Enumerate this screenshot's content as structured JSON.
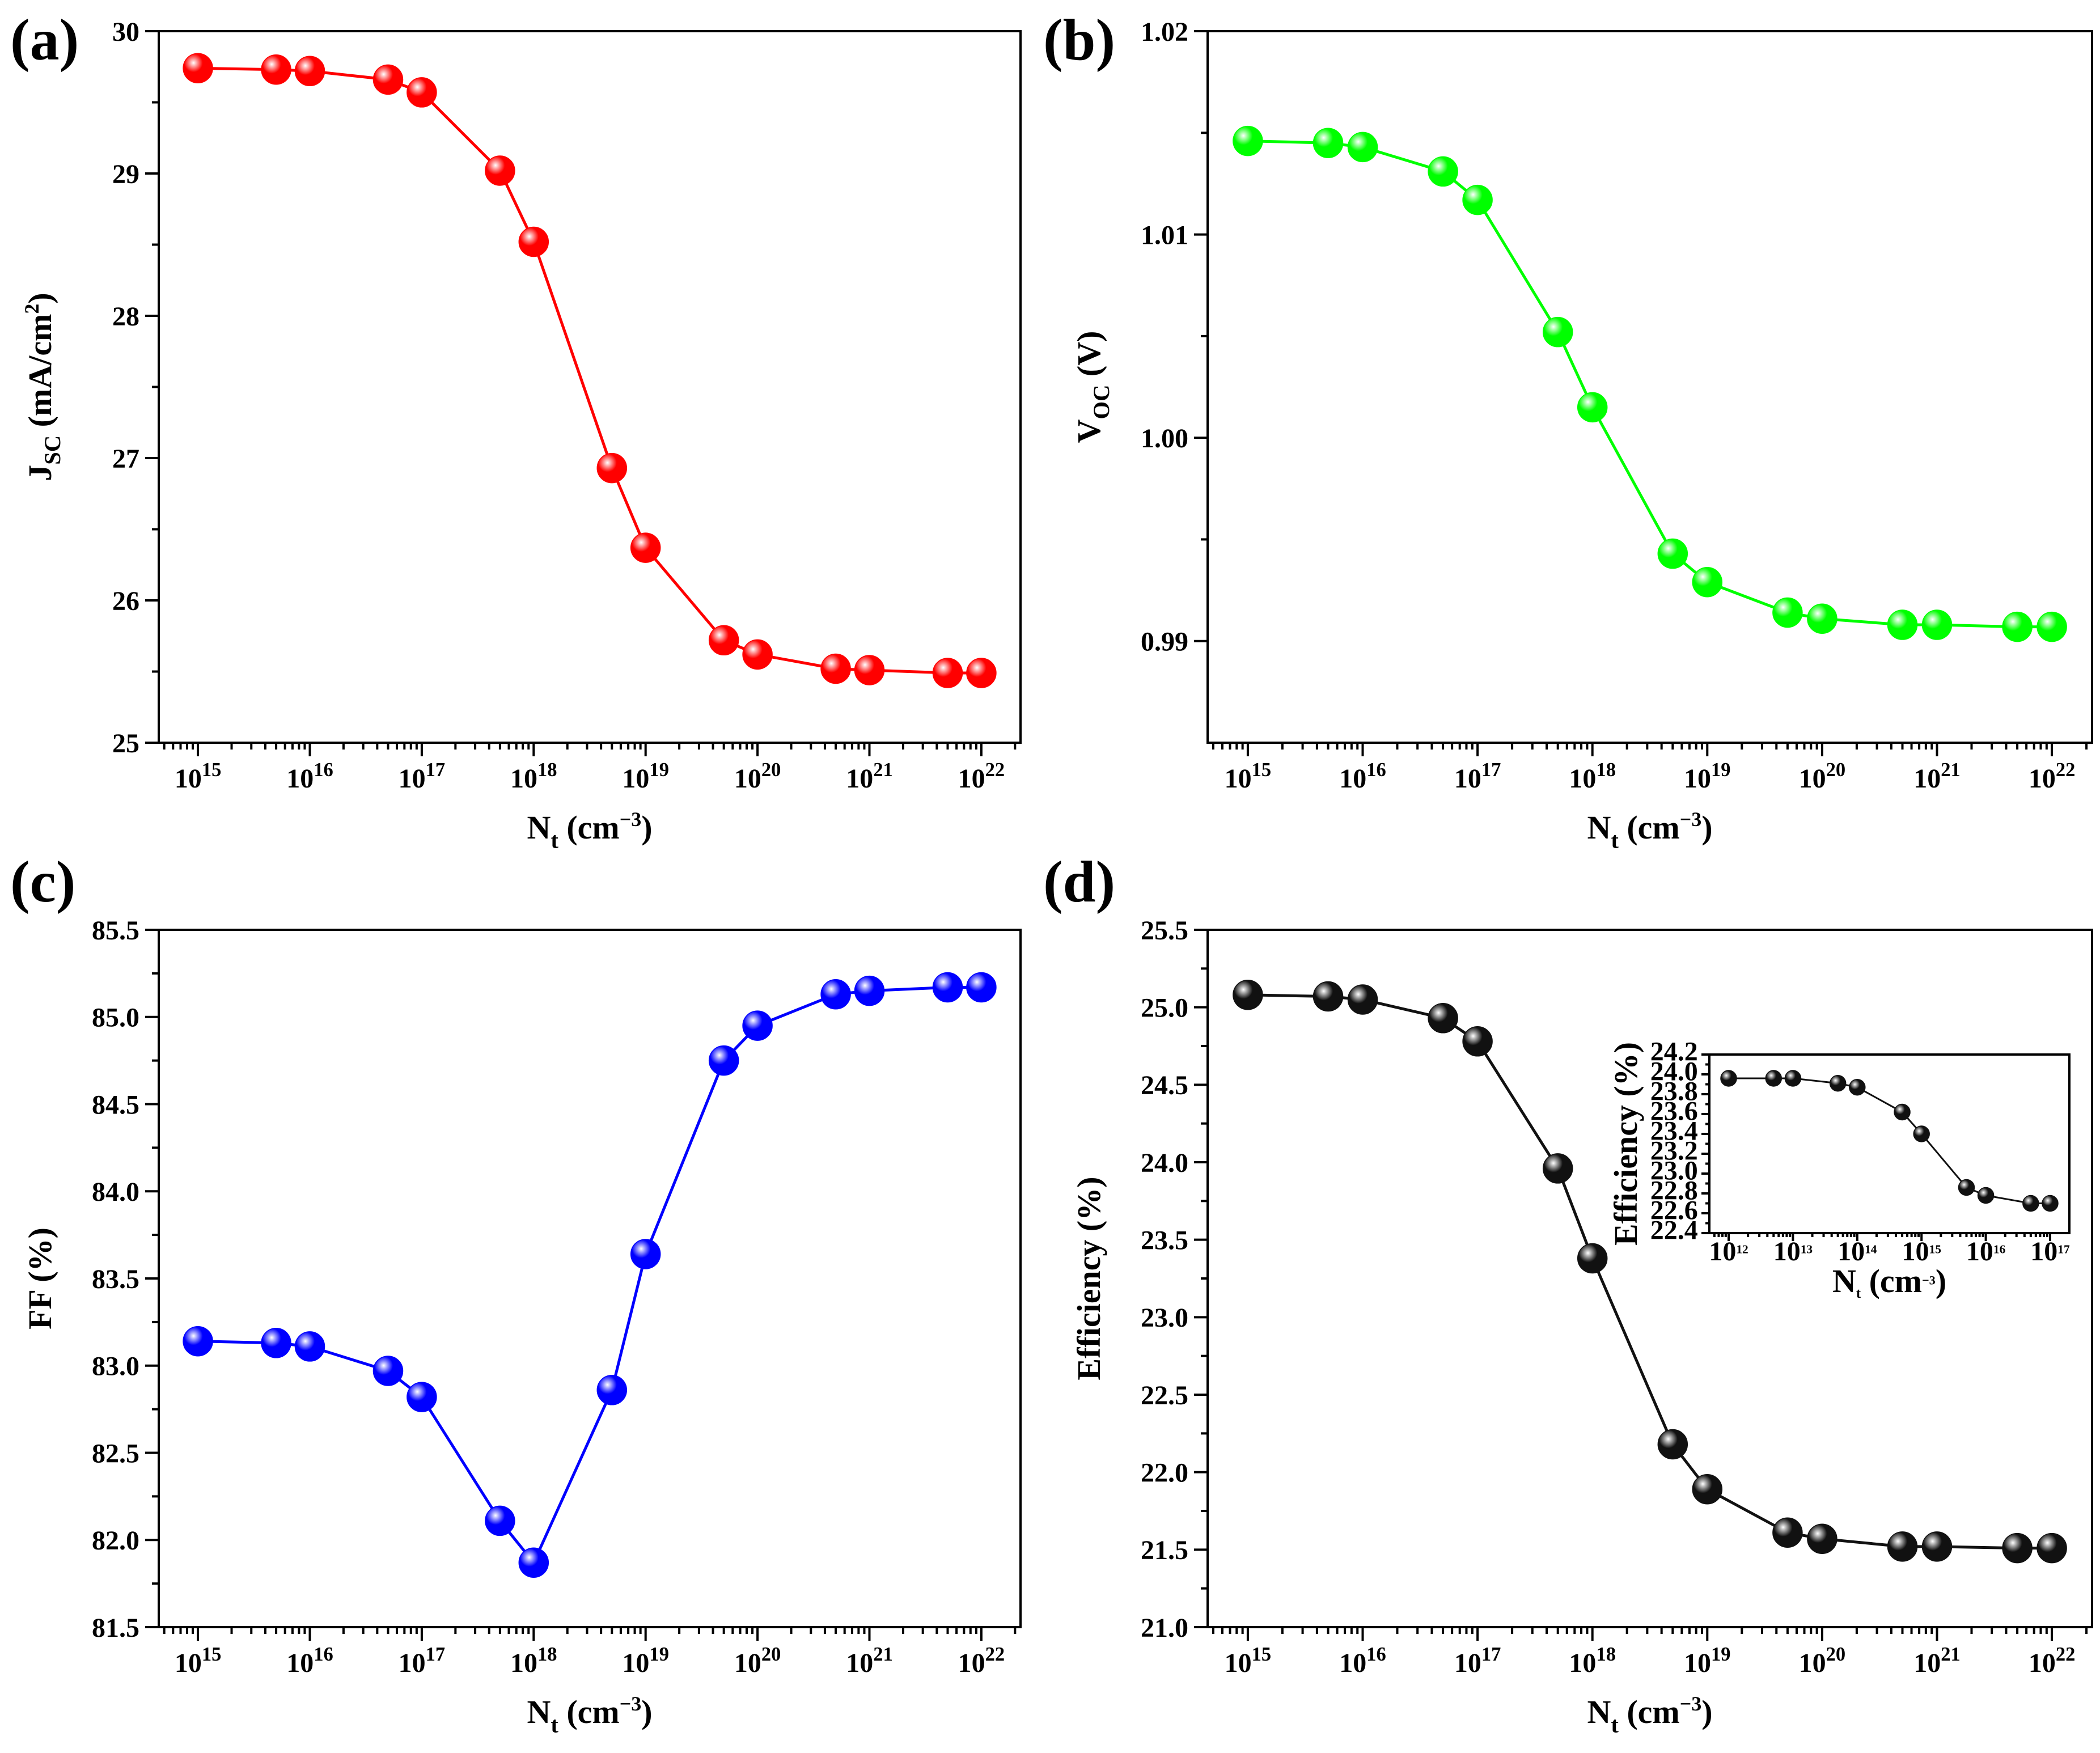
{
  "chart_data": [
    {
      "id": "a",
      "type": "line",
      "panel_label": "(a)",
      "xscale": "log",
      "xlim_exp": [
        14.65,
        22.35
      ],
      "xtick_exponents": [
        15,
        16,
        17,
        18,
        19,
        20,
        21,
        22
      ],
      "xlabel": {
        "base": "N",
        "sub": "t",
        "unit": " (cm",
        "sup": "−3",
        "close": ")"
      },
      "ylabel": {
        "base": "J",
        "sub": "SC",
        "unit": " (mA/cm",
        "sup": "2",
        "close": ")"
      },
      "ylim": [
        25,
        30
      ],
      "yticks": [
        25,
        26,
        27,
        28,
        29,
        30
      ],
      "ytick_labels": [
        "25",
        "26",
        "27",
        "28",
        "29",
        "30"
      ],
      "color": "#ff0000",
      "series": [
        {
          "name": "Jsc",
          "x": [
            1000000000000000.0,
            5000000000000000.0,
            1e+16,
            5e+16,
            1e+17,
            5e+17,
            1e+18,
            5e+18,
            1e+19,
            5e+19,
            1e+20,
            5e+20,
            1e+21,
            5e+21,
            1e+22
          ],
          "values": [
            29.74,
            29.73,
            29.72,
            29.66,
            29.57,
            29.02,
            28.52,
            26.93,
            26.37,
            25.72,
            25.62,
            25.52,
            25.51,
            25.49,
            25.49
          ]
        }
      ]
    },
    {
      "id": "b",
      "type": "line",
      "panel_label": "(b)",
      "xscale": "log",
      "xlim_exp": [
        14.65,
        22.35
      ],
      "xtick_exponents": [
        15,
        16,
        17,
        18,
        19,
        20,
        21,
        22
      ],
      "xlabel": {
        "base": "N",
        "sub": "t",
        "unit": " (cm",
        "sup": "−3",
        "close": ")"
      },
      "ylabel": {
        "base": "V",
        "sub": "OC",
        "unit": " (V)",
        "sup": "",
        "close": ""
      },
      "ylim": [
        0.985,
        1.02
      ],
      "yticks": [
        0.99,
        1.0,
        1.01,
        1.02
      ],
      "ytick_labels": [
        "0.99",
        "1.00",
        "1.01",
        "1.02"
      ],
      "color": "#00ff00",
      "series": [
        {
          "name": "Voc",
          "x": [
            1000000000000000.0,
            5000000000000000.0,
            1e+16,
            5e+16,
            1e+17,
            5e+17,
            1e+18,
            5e+18,
            1e+19,
            5e+19,
            1e+20,
            5e+20,
            1e+21,
            5e+21,
            1e+22
          ],
          "values": [
            1.0146,
            1.0145,
            1.0143,
            1.0131,
            1.0117,
            1.0052,
            1.0015,
            0.9943,
            0.9929,
            0.9914,
            0.9911,
            0.9908,
            0.9908,
            0.9907,
            0.9907
          ]
        }
      ]
    },
    {
      "id": "c",
      "type": "line",
      "panel_label": "(c)",
      "xscale": "log",
      "xlim_exp": [
        14.65,
        22.35
      ],
      "xtick_exponents": [
        15,
        16,
        17,
        18,
        19,
        20,
        21,
        22
      ],
      "xlabel": {
        "base": "N",
        "sub": "t",
        "unit": " (cm",
        "sup": "−3",
        "close": ")"
      },
      "ylabel": {
        "base": "FF (%)",
        "sub": "",
        "unit": "",
        "sup": "",
        "close": ""
      },
      "ylim": [
        81.5,
        85.5
      ],
      "yticks": [
        81.5,
        82.0,
        82.5,
        83.0,
        83.5,
        84.0,
        84.5,
        85.0,
        85.5
      ],
      "ytick_labels": [
        "81.5",
        "82.0",
        "82.5",
        "83.0",
        "83.5",
        "84.0",
        "84.5",
        "85.0",
        "85.5"
      ],
      "color": "#0000ff",
      "series": [
        {
          "name": "FF",
          "x": [
            1000000000000000.0,
            5000000000000000.0,
            1e+16,
            5e+16,
            1e+17,
            5e+17,
            1e+18,
            5e+18,
            1e+19,
            5e+19,
            1e+20,
            5e+20,
            1e+21,
            5e+21,
            1e+22
          ],
          "values": [
            83.14,
            83.13,
            83.11,
            82.97,
            82.82,
            82.11,
            81.87,
            82.86,
            83.64,
            84.75,
            84.95,
            85.13,
            85.15,
            85.17,
            85.17
          ]
        }
      ]
    },
    {
      "id": "d",
      "type": "line",
      "panel_label": "(d)",
      "xscale": "log",
      "xlim_exp": [
        14.65,
        22.35
      ],
      "xtick_exponents": [
        15,
        16,
        17,
        18,
        19,
        20,
        21,
        22
      ],
      "xlabel": {
        "base": "N",
        "sub": "t",
        "unit": " (cm",
        "sup": "−3",
        "close": ")"
      },
      "ylabel": {
        "base": "Efficiency (%)",
        "sub": "",
        "unit": "",
        "sup": "",
        "close": ""
      },
      "ylim": [
        21.0,
        25.5
      ],
      "yticks": [
        21.0,
        21.5,
        22.0,
        22.5,
        23.0,
        23.5,
        24.0,
        24.5,
        25.0,
        25.5
      ],
      "ytick_labels": [
        "21.0",
        "21.5",
        "22.0",
        "22.5",
        "23.0",
        "23.5",
        "24.0",
        "24.5",
        "25.0",
        "25.5"
      ],
      "color": "#111111",
      "series": [
        {
          "name": "Efficiency",
          "x": [
            1000000000000000.0,
            5000000000000000.0,
            1e+16,
            5e+16,
            1e+17,
            5e+17,
            1e+18,
            5e+18,
            1e+19,
            5e+19,
            1e+20,
            5e+20,
            1e+21,
            5e+21,
            1e+22
          ],
          "values": [
            25.08,
            25.07,
            25.05,
            24.93,
            24.78,
            23.96,
            23.38,
            22.18,
            21.89,
            21.61,
            21.57,
            21.52,
            21.52,
            21.51,
            21.51
          ]
        }
      ]
    },
    {
      "id": "d-inset",
      "type": "line",
      "panel_label": "",
      "xscale": "log",
      "xlim_exp": [
        11.7,
        17.3
      ],
      "xtick_exponents": [
        12,
        13,
        14,
        15,
        16,
        17
      ],
      "xlabel": {
        "base": "N",
        "sub": "t",
        "unit": " (cm",
        "sup": "−3",
        "close": ")"
      },
      "ylabel": {
        "base": "Efficiency (%)",
        "sub": "",
        "unit": "",
        "sup": "",
        "close": ""
      },
      "ylim": [
        22.4,
        24.2
      ],
      "yticks": [
        22.4,
        22.6,
        22.8,
        23.0,
        23.2,
        23.4,
        23.6,
        23.8,
        24.0,
        24.2
      ],
      "ytick_labels": [
        "22.4",
        "22.6",
        "22.8",
        "23.0",
        "23.2",
        "23.4",
        "23.6",
        "23.8",
        "24.0",
        "24.2"
      ],
      "color": "#111111",
      "series": [
        {
          "name": "Efficiency (inset)",
          "x": [
            1000000000000.0,
            5000000000000.0,
            10000000000000.0,
            50000000000000.0,
            100000000000000.0,
            500000000000000.0,
            1000000000000000.0,
            5000000000000000.0,
            1e+16,
            5e+16,
            1e+17
          ],
          "values": [
            23.96,
            23.96,
            23.96,
            23.91,
            23.87,
            23.62,
            23.4,
            22.86,
            22.78,
            22.7,
            22.7
          ]
        }
      ]
    }
  ]
}
